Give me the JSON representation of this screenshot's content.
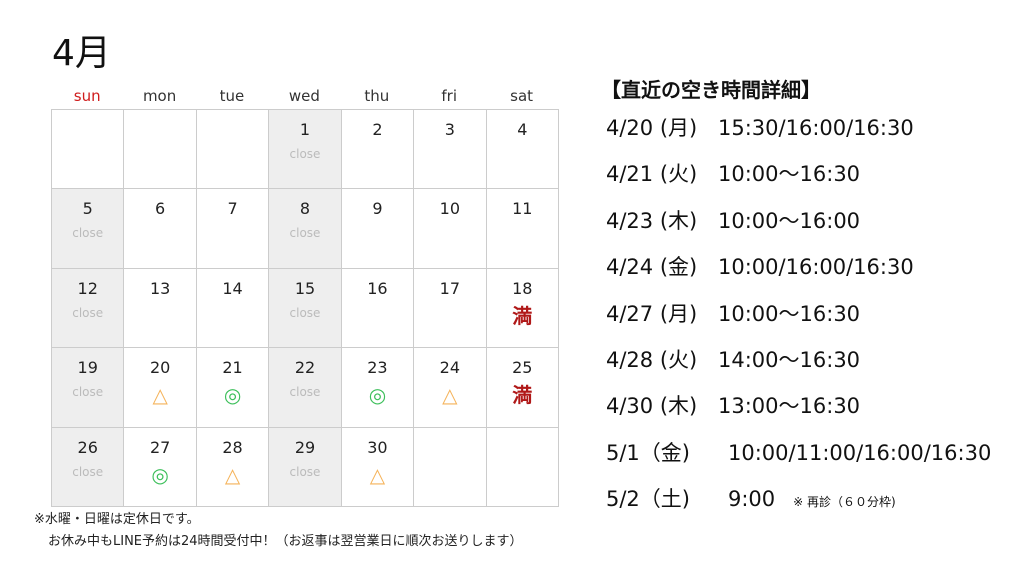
{
  "title": "4月",
  "weekdays": [
    {
      "label": "sun",
      "color": "#d01c1c"
    },
    {
      "label": "mon"
    },
    {
      "label": "tue"
    },
    {
      "label": "wed"
    },
    {
      "label": "thu"
    },
    {
      "label": "fri"
    },
    {
      "label": "sat"
    }
  ],
  "close_label": "close",
  "colors": {
    "triangle": "#f5b35a",
    "double_circle": "#3cbf5a",
    "full": "#b01818",
    "closed_bg": "#eeeeee"
  },
  "cells": [
    {
      "day": ""
    },
    {
      "day": ""
    },
    {
      "day": ""
    },
    {
      "day": "1",
      "closed": true
    },
    {
      "day": "2"
    },
    {
      "day": "3"
    },
    {
      "day": "4"
    },
    {
      "day": "5",
      "closed": true
    },
    {
      "day": "6"
    },
    {
      "day": "7"
    },
    {
      "day": "8",
      "closed": true
    },
    {
      "day": "9"
    },
    {
      "day": "10"
    },
    {
      "day": "11"
    },
    {
      "day": "12",
      "closed": true
    },
    {
      "day": "13"
    },
    {
      "day": "14"
    },
    {
      "day": "15",
      "closed": true
    },
    {
      "day": "16"
    },
    {
      "day": "17"
    },
    {
      "day": "18",
      "mark": "満"
    },
    {
      "day": "19",
      "closed": true
    },
    {
      "day": "20",
      "mark": "△"
    },
    {
      "day": "21",
      "mark": "◎"
    },
    {
      "day": "22",
      "closed": true
    },
    {
      "day": "23",
      "mark": "◎"
    },
    {
      "day": "24",
      "mark": "△"
    },
    {
      "day": "25",
      "mark": "満"
    },
    {
      "day": "26",
      "closed": true
    },
    {
      "day": "27",
      "mark": "◎"
    },
    {
      "day": "28",
      "mark": "△"
    },
    {
      "day": "29",
      "closed": true
    },
    {
      "day": "30",
      "mark": "△"
    },
    {
      "day": ""
    },
    {
      "day": ""
    }
  ],
  "notes": [
    "※水曜・日曜は定休日です。",
    "お休み中もLINE予約は24時間受付中！（お返事は翌営業日に順次お送りします）"
  ],
  "availability": {
    "title": "【直近の空き時間詳細】",
    "rows": [
      {
        "date": "4/20 (月)",
        "times": "15:30/16:00/16:30"
      },
      {
        "date": "4/21 (火)",
        "times": "10:00～16:30"
      },
      {
        "date": "4/23 (木)",
        "times": "10:00～16:00"
      },
      {
        "date": "4/24 (金)",
        "times": "10:00/16:00/16:30"
      },
      {
        "date": "4/27 (月)",
        "times": "10:00～16:30"
      },
      {
        "date": "4/28 (火)",
        "times": "14:00～16:30"
      },
      {
        "date": "4/30 (木)",
        "times": "13:00～16:30"
      },
      {
        "date": "5/1（金)",
        "times": "10:00/11:00/16:00/16:30"
      },
      {
        "date": "5/2（土)",
        "times": "9:00",
        "note": "※ 再診（６０分枠)"
      }
    ]
  }
}
